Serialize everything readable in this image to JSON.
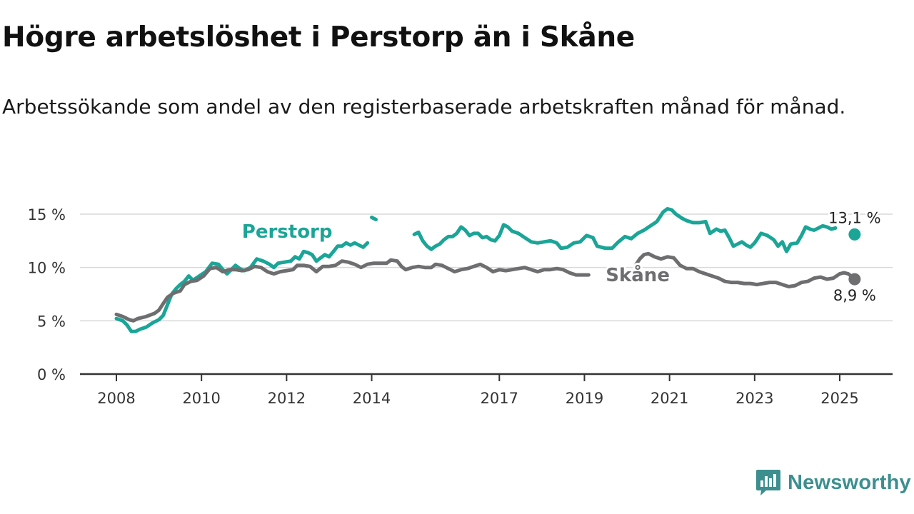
{
  "header": {
    "title": "Högre arbetslöshet i Perstorp än i Skåne",
    "subtitle": "Arbetssökande som andel av den registerbaserade arbetskraften månad för månad."
  },
  "brand": {
    "name": "Newsworthy",
    "logo_icon": "newsworthy-chart-bubble-icon",
    "color": "#3d8f8f"
  },
  "chart_data": {
    "type": "line",
    "title": "Högre arbetslöshet i Perstorp än i Skåne",
    "subtitle": "Arbetssökande som andel av den registerbaserade arbetskraften månad för månad.",
    "xlabel": "",
    "ylabel": "",
    "x_unit": "year",
    "xlim": [
      2008,
      2026.2
    ],
    "ylim": [
      0,
      16
    ],
    "grid": "horizontal",
    "x_ticks": [
      {
        "value": 2008,
        "label": "2008"
      },
      {
        "value": 2010,
        "label": "2010"
      },
      {
        "value": 2012,
        "label": "2012"
      },
      {
        "value": 2014,
        "label": "2014"
      },
      {
        "value": 2017,
        "label": "2017"
      },
      {
        "value": 2019,
        "label": "2019"
      },
      {
        "value": 2021,
        "label": "2021"
      },
      {
        "value": 2023,
        "label": "2023"
      },
      {
        "value": 2025,
        "label": "2025"
      }
    ],
    "y_ticks": [
      {
        "value": 0,
        "label": "0 %"
      },
      {
        "value": 5,
        "label": "5 %"
      },
      {
        "value": 10,
        "label": "10 %"
      },
      {
        "value": 15,
        "label": "15 %"
      }
    ],
    "series": [
      {
        "name": "Perstorp",
        "color": "#1aa597",
        "end_label": "13,1 %",
        "end_value": 13.1,
        "end_x": 2025.35,
        "label_at": {
          "x": 2010.95,
          "y": 13.4
        },
        "points": [
          [
            2008.0,
            5.2
          ],
          [
            2008.15,
            5.0
          ],
          [
            2008.25,
            4.6
          ],
          [
            2008.35,
            4.0
          ],
          [
            2008.45,
            4.0
          ],
          [
            2008.55,
            4.2
          ],
          [
            2008.7,
            4.4
          ],
          [
            2008.85,
            4.8
          ],
          [
            2009.0,
            5.1
          ],
          [
            2009.1,
            5.5
          ],
          [
            2009.2,
            6.5
          ],
          [
            2009.3,
            7.5
          ],
          [
            2009.4,
            8.0
          ],
          [
            2009.5,
            8.4
          ],
          [
            2009.6,
            8.7
          ],
          [
            2009.7,
            9.2
          ],
          [
            2009.8,
            8.8
          ],
          [
            2009.95,
            9.2
          ],
          [
            2010.1,
            9.6
          ],
          [
            2010.25,
            10.4
          ],
          [
            2010.4,
            10.3
          ],
          [
            2010.5,
            9.8
          ],
          [
            2010.6,
            9.4
          ],
          [
            2010.7,
            9.8
          ],
          [
            2010.8,
            10.2
          ],
          [
            2010.9,
            9.9
          ],
          [
            2011.0,
            9.7
          ],
          [
            2011.15,
            10.0
          ],
          [
            2011.3,
            10.8
          ],
          [
            2011.45,
            10.6
          ],
          [
            2011.6,
            10.3
          ],
          [
            2011.7,
            10.0
          ],
          [
            2011.8,
            10.4
          ],
          [
            2011.95,
            10.5
          ],
          [
            2012.1,
            10.6
          ],
          [
            2012.2,
            11.0
          ],
          [
            2012.3,
            10.8
          ],
          [
            2012.4,
            11.5
          ],
          [
            2012.5,
            11.4
          ],
          [
            2012.6,
            11.2
          ],
          [
            2012.7,
            10.6
          ],
          [
            2012.8,
            10.9
          ],
          [
            2012.9,
            11.2
          ],
          [
            2013.0,
            11.0
          ],
          [
            2013.1,
            11.5
          ],
          [
            2013.2,
            12.0
          ],
          [
            2013.3,
            12.0
          ],
          [
            2013.4,
            12.3
          ],
          [
            2013.5,
            12.1
          ],
          [
            2013.6,
            12.3
          ],
          [
            2013.7,
            12.1
          ],
          [
            2013.8,
            11.9
          ],
          [
            2013.9,
            12.3
          ],
          null,
          [
            2014.0,
            14.7
          ],
          [
            2014.1,
            14.5
          ],
          null,
          [
            2015.0,
            13.1
          ],
          [
            2015.1,
            13.3
          ],
          [
            2015.2,
            12.5
          ],
          [
            2015.3,
            12.0
          ],
          [
            2015.4,
            11.7
          ],
          [
            2015.5,
            12.0
          ],
          [
            2015.6,
            12.2
          ],
          [
            2015.7,
            12.6
          ],
          [
            2015.8,
            12.9
          ],
          [
            2015.9,
            12.9
          ],
          [
            2016.0,
            13.2
          ],
          [
            2016.1,
            13.8
          ],
          [
            2016.2,
            13.5
          ],
          [
            2016.3,
            13.0
          ],
          [
            2016.4,
            13.2
          ],
          [
            2016.5,
            13.2
          ],
          [
            2016.6,
            12.8
          ],
          [
            2016.7,
            12.9
          ],
          [
            2016.8,
            12.6
          ],
          [
            2016.9,
            12.5
          ],
          [
            2017.0,
            13.0
          ],
          [
            2017.1,
            14.0
          ],
          [
            2017.2,
            13.8
          ],
          [
            2017.3,
            13.4
          ],
          [
            2017.45,
            13.2
          ],
          [
            2017.6,
            12.8
          ],
          [
            2017.75,
            12.4
          ],
          [
            2017.9,
            12.3
          ],
          [
            2018.05,
            12.4
          ],
          [
            2018.2,
            12.5
          ],
          [
            2018.35,
            12.3
          ],
          [
            2018.45,
            11.8
          ],
          [
            2018.6,
            11.9
          ],
          [
            2018.75,
            12.3
          ],
          [
            2018.9,
            12.4
          ],
          [
            2019.05,
            13.0
          ],
          [
            2019.2,
            12.8
          ],
          [
            2019.3,
            12.0
          ],
          [
            2019.5,
            11.8
          ],
          [
            2019.65,
            11.8
          ],
          [
            2019.8,
            12.4
          ],
          [
            2019.95,
            12.9
          ],
          [
            2020.1,
            12.7
          ],
          [
            2020.25,
            13.2
          ],
          [
            2020.4,
            13.5
          ],
          [
            2020.55,
            13.9
          ],
          [
            2020.7,
            14.3
          ],
          [
            2020.85,
            15.2
          ],
          [
            2020.95,
            15.5
          ],
          [
            2021.05,
            15.4
          ],
          [
            2021.15,
            15.0
          ],
          [
            2021.3,
            14.6
          ],
          [
            2021.4,
            14.4
          ],
          [
            2021.55,
            14.2
          ],
          [
            2021.7,
            14.2
          ],
          [
            2021.85,
            14.3
          ],
          [
            2021.95,
            13.2
          ],
          [
            2022.1,
            13.6
          ],
          [
            2022.2,
            13.4
          ],
          [
            2022.3,
            13.5
          ],
          [
            2022.4,
            12.8
          ],
          [
            2022.5,
            12.0
          ],
          [
            2022.6,
            12.2
          ],
          [
            2022.7,
            12.4
          ],
          [
            2022.8,
            12.1
          ],
          [
            2022.9,
            11.9
          ],
          [
            2023.0,
            12.3
          ],
          [
            2023.15,
            13.2
          ],
          [
            2023.3,
            13.0
          ],
          [
            2023.45,
            12.6
          ],
          [
            2023.55,
            12.0
          ],
          [
            2023.65,
            12.4
          ],
          [
            2023.75,
            11.5
          ],
          [
            2023.85,
            12.2
          ],
          [
            2024.0,
            12.3
          ],
          [
            2024.1,
            13.0
          ],
          [
            2024.2,
            13.8
          ],
          [
            2024.3,
            13.6
          ],
          [
            2024.4,
            13.5
          ],
          [
            2024.5,
            13.7
          ],
          [
            2024.6,
            13.9
          ],
          [
            2024.7,
            13.8
          ],
          [
            2024.8,
            13.6
          ],
          [
            2024.9,
            13.7
          ]
        ]
      },
      {
        "name": "Skåne",
        "color": "#6e6e70",
        "end_label": "8,9 %",
        "end_value": 8.9,
        "end_x": 2025.35,
        "label_at": {
          "x": 2019.5,
          "y": 9.3
        },
        "points": [
          [
            2008.0,
            5.6
          ],
          [
            2008.15,
            5.4
          ],
          [
            2008.3,
            5.1
          ],
          [
            2008.4,
            5.0
          ],
          [
            2008.5,
            5.2
          ],
          [
            2008.7,
            5.4
          ],
          [
            2008.9,
            5.7
          ],
          [
            2009.0,
            6.0
          ],
          [
            2009.1,
            6.6
          ],
          [
            2009.2,
            7.2
          ],
          [
            2009.35,
            7.6
          ],
          [
            2009.5,
            7.8
          ],
          [
            2009.6,
            8.4
          ],
          [
            2009.75,
            8.7
          ],
          [
            2009.9,
            8.8
          ],
          [
            2010.05,
            9.2
          ],
          [
            2010.2,
            9.9
          ],
          [
            2010.35,
            10.0
          ],
          [
            2010.5,
            9.6
          ],
          [
            2010.65,
            9.8
          ],
          [
            2010.8,
            9.8
          ],
          [
            2010.95,
            9.7
          ],
          [
            2011.1,
            9.8
          ],
          [
            2011.25,
            10.1
          ],
          [
            2011.4,
            10.0
          ],
          [
            2011.55,
            9.6
          ],
          [
            2011.7,
            9.4
          ],
          [
            2011.85,
            9.6
          ],
          [
            2012.0,
            9.7
          ],
          [
            2012.15,
            9.8
          ],
          [
            2012.25,
            10.2
          ],
          [
            2012.4,
            10.2
          ],
          [
            2012.55,
            10.1
          ],
          [
            2012.7,
            9.6
          ],
          [
            2012.85,
            10.1
          ],
          [
            2013.0,
            10.1
          ],
          [
            2013.15,
            10.2
          ],
          [
            2013.3,
            10.6
          ],
          [
            2013.45,
            10.5
          ],
          [
            2013.6,
            10.3
          ],
          [
            2013.75,
            10.0
          ],
          [
            2013.9,
            10.3
          ],
          [
            2014.05,
            10.4
          ],
          [
            2014.2,
            10.4
          ],
          [
            2014.35,
            10.4
          ],
          [
            2014.45,
            10.7
          ],
          [
            2014.6,
            10.6
          ],
          [
            2014.7,
            10.1
          ],
          [
            2014.8,
            9.8
          ],
          [
            2014.95,
            10.0
          ],
          [
            2015.1,
            10.1
          ],
          [
            2015.25,
            10.0
          ],
          [
            2015.4,
            10.0
          ],
          [
            2015.5,
            10.3
          ],
          [
            2015.65,
            10.2
          ],
          [
            2015.8,
            9.9
          ],
          [
            2015.95,
            9.6
          ],
          [
            2016.1,
            9.8
          ],
          [
            2016.25,
            9.9
          ],
          [
            2016.4,
            10.1
          ],
          [
            2016.55,
            10.3
          ],
          [
            2016.7,
            10.0
          ],
          [
            2016.85,
            9.6
          ],
          [
            2017.0,
            9.8
          ],
          [
            2017.15,
            9.7
          ],
          [
            2017.3,
            9.8
          ],
          [
            2017.45,
            9.9
          ],
          [
            2017.6,
            10.0
          ],
          [
            2017.75,
            9.8
          ],
          [
            2017.9,
            9.6
          ],
          [
            2018.05,
            9.8
          ],
          [
            2018.2,
            9.8
          ],
          [
            2018.35,
            9.9
          ],
          [
            2018.5,
            9.8
          ],
          [
            2018.65,
            9.5
          ],
          [
            2018.8,
            9.3
          ],
          [
            2018.95,
            9.3
          ],
          [
            2019.1,
            9.3
          ],
          null,
          [
            2020.2,
            10.2
          ],
          [
            2020.3,
            10.8
          ],
          [
            2020.4,
            11.2
          ],
          [
            2020.5,
            11.3
          ],
          [
            2020.65,
            11.0
          ],
          [
            2020.8,
            10.8
          ],
          [
            2020.95,
            11.0
          ],
          [
            2021.1,
            10.9
          ],
          [
            2021.25,
            10.2
          ],
          [
            2021.4,
            9.9
          ],
          [
            2021.55,
            9.9
          ],
          [
            2021.7,
            9.6
          ],
          [
            2021.85,
            9.4
          ],
          [
            2022.0,
            9.2
          ],
          [
            2022.15,
            9.0
          ],
          [
            2022.3,
            8.7
          ],
          [
            2022.45,
            8.6
          ],
          [
            2022.6,
            8.6
          ],
          [
            2022.75,
            8.5
          ],
          [
            2022.9,
            8.5
          ],
          [
            2023.05,
            8.4
          ],
          [
            2023.2,
            8.5
          ],
          [
            2023.35,
            8.6
          ],
          [
            2023.5,
            8.6
          ],
          [
            2023.65,
            8.4
          ],
          [
            2023.8,
            8.2
          ],
          [
            2023.95,
            8.3
          ],
          [
            2024.1,
            8.6
          ],
          [
            2024.25,
            8.7
          ],
          [
            2024.4,
            9.0
          ],
          [
            2024.55,
            9.1
          ],
          [
            2024.7,
            8.9
          ],
          [
            2024.85,
            9.0
          ],
          [
            2025.0,
            9.4
          ],
          [
            2025.1,
            9.5
          ],
          [
            2025.2,
            9.4
          ],
          [
            2025.3,
            9.1
          ],
          [
            2025.35,
            8.9
          ]
        ]
      }
    ]
  }
}
